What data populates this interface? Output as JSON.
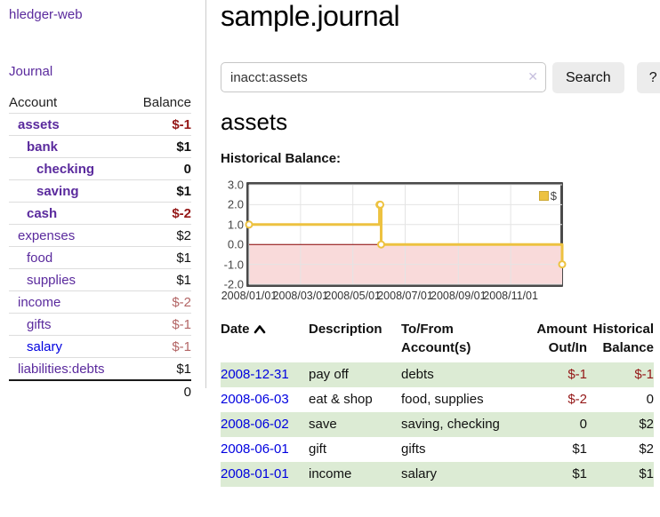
{
  "app": {
    "brand": "hledger-web",
    "nav_journal": "Journal"
  },
  "sidebar": {
    "header": {
      "account": "Account",
      "balance": "Balance"
    },
    "accounts": [
      {
        "name": "assets",
        "balance": "$-1"
      },
      {
        "name": "bank",
        "balance": "$1"
      },
      {
        "name": "checking",
        "balance": "0"
      },
      {
        "name": "saving",
        "balance": "$1"
      },
      {
        "name": "cash",
        "balance": "$-2"
      },
      {
        "name": "expenses",
        "balance": "$2"
      },
      {
        "name": "food",
        "balance": "$1"
      },
      {
        "name": "supplies",
        "balance": "$1"
      },
      {
        "name": "income",
        "balance": "$-2"
      },
      {
        "name": "gifts",
        "balance": "$-1"
      },
      {
        "name": "salary",
        "balance": "$-1"
      },
      {
        "name": "liabilities:debts",
        "balance": "$1"
      }
    ],
    "total": "0"
  },
  "main": {
    "title": "sample.journal",
    "search": {
      "value": "inacct:assets",
      "clear_icon": "✕",
      "button_label": "Search",
      "help_label": "?"
    },
    "account_heading": "assets",
    "chart_heading": "Historical Balance:"
  },
  "chart_data": {
    "type": "line",
    "title": "Historical Balance",
    "step": true,
    "x_range": [
      "2008-01-01",
      "2008-12-31"
    ],
    "ylim": [
      -2,
      3
    ],
    "yticks": [
      "3.0",
      "2.0",
      "1.0",
      "0.0",
      "-1.0",
      "-2.0"
    ],
    "xticks": [
      "2008/01/01",
      "2008/03/01",
      "2008/05/01",
      "2008/07/01",
      "2008/09/01",
      "2008/11/01"
    ],
    "series": [
      {
        "name": "$",
        "points": [
          [
            "2008-01-01",
            1
          ],
          [
            "2008-06-01",
            2
          ],
          [
            "2008-06-02",
            2
          ],
          [
            "2008-06-03",
            0
          ],
          [
            "2008-12-31",
            -1
          ]
        ]
      }
    ],
    "legend": [
      {
        "label": "$",
        "color": "#edc240"
      }
    ],
    "legend_position": "top-right",
    "grid": true,
    "colors": {
      "line": "#edc240",
      "marker_fill": "#ffffff",
      "negative_fill": "#f9dada",
      "zero_line": "#8b0000",
      "grid": "#e4e4e4",
      "border": "#4a4a4a"
    }
  },
  "register": {
    "sort": {
      "column": "date",
      "direction": "ascending"
    },
    "headers": {
      "date": "Date",
      "description": "Description",
      "accounts": "To/From Account(s)",
      "amount": "Amount Out/In",
      "balance": "Historical Balance"
    },
    "rows": [
      {
        "date": "2008-12-31",
        "description": "pay off",
        "accounts": "debts",
        "amount": "$-1",
        "balance": "$-1"
      },
      {
        "date": "2008-06-03",
        "description": "eat & shop",
        "accounts": "food, supplies",
        "amount": "$-2",
        "balance": "0"
      },
      {
        "date": "2008-06-02",
        "description": "save",
        "accounts": "saving, checking",
        "amount": "0",
        "balance": "$2"
      },
      {
        "date": "2008-06-01",
        "description": "gift",
        "accounts": "gifts",
        "amount": "$1",
        "balance": "$2"
      },
      {
        "date": "2008-01-01",
        "description": "income",
        "accounts": "salary",
        "amount": "$1",
        "balance": "$1"
      }
    ]
  }
}
